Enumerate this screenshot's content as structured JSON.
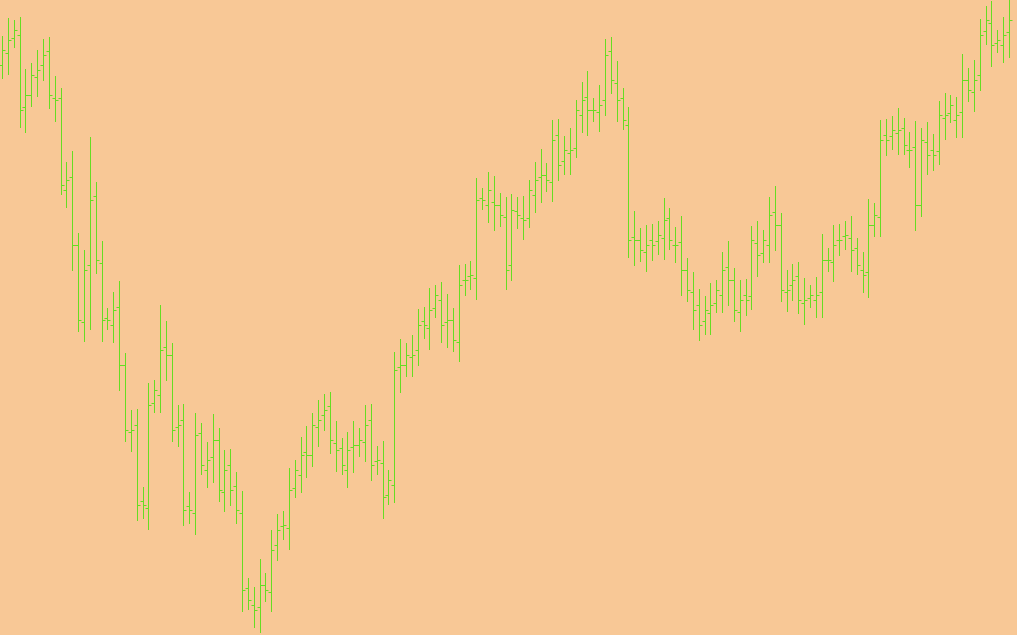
{
  "chart_data": {
    "type": "ohlc",
    "color": "#66dd22",
    "background": "#f8c896",
    "ylim": [
      0,
      635
    ],
    "open": [
      570,
      582,
      597,
      600,
      528,
      540,
      558,
      570,
      584,
      537,
      537,
      445,
      458,
      390,
      313,
      370,
      439,
      372,
      317,
      310,
      328,
      270,
      203,
      210,
      134,
      127,
      232,
      240,
      288,
      280,
      208,
      215,
      129,
      122,
      202,
      165,
      178,
      195,
      143,
      170,
      149,
      122,
      47,
      30,
      28,
      50,
      43,
      90,
      109,
      107,
      147,
      160,
      183,
      180,
      208,
      220,
      229,
      192,
      187,
      165,
      188,
      190,
      193,
      215,
      174,
      172,
      140,
      150,
      268,
      270,
      278,
      285,
      314,
      307,
      327,
      335,
      313,
      315,
      293,
      355,
      359,
      357,
      437,
      430,
      433,
      430,
      418,
      370,
      424,
      417,
      417,
      440,
      458,
      460,
      453,
      500,
      474,
      482,
      487,
      520,
      538,
      525,
      523,
      535,
      584,
      552,
      537,
      510,
      398,
      395,
      383,
      395,
      394,
      397,
      417,
      390,
      393,
      365,
      343,
      330,
      314,
      322,
      332,
      340,
      368,
      355,
      323,
      340,
      339,
      392,
      382,
      390,
      423,
      410,
      343,
      350,
      359,
      332,
      337,
      335,
      343,
      375,
      373,
      395,
      399,
      397,
      387,
      365,
      363,
      410,
      418,
      500,
      499,
      502,
      507,
      485,
      488,
      430,
      493,
      485,
      484,
      517,
      522,
      515,
      523,
      555,
      543,
      560,
      604,
      612,
      592,
      590,
      603
    ],
    "high": [
      599,
      617,
      615,
      618,
      566,
      572,
      585,
      596,
      598,
      559,
      547,
      473,
      484,
      402,
      385,
      498,
      453,
      394,
      327,
      343,
      354,
      282,
      225,
      226,
      148,
      252,
      255,
      330,
      314,
      292,
      230,
      231,
      143,
      222,
      212,
      193,
      221,
      207,
      185,
      186,
      163,
      144,
      57,
      48,
      76,
      62,
      105,
      121,
      124,
      167,
      175,
      198,
      209,
      222,
      235,
      241,
      243,
      214,
      197,
      203,
      214,
      207,
      230,
      231,
      189,
      194,
      165,
      283,
      296,
      292,
      300,
      326,
      328,
      347,
      350,
      353,
      341,
      327,
      370,
      371,
      374,
      457,
      447,
      463,
      459,
      442,
      438,
      441,
      438,
      439,
      455,
      473,
      486,
      472,
      515,
      516,
      499,
      507,
      535,
      553,
      564,
      537,
      550,
      596,
      598,
      574,
      547,
      528,
      424,
      407,
      410,
      411,
      414,
      437,
      427,
      408,
      419,
      377,
      363,
      346,
      339,
      352,
      355,
      383,
      394,
      367,
      355,
      356,
      409,
      414,
      405,
      438,
      449,
      422,
      365,
      371,
      373,
      357,
      350,
      358,
      401,
      387,
      410,
      411,
      414,
      419,
      397,
      383,
      436,
      432,
      515,
      516,
      519,
      527,
      517,
      503,
      514,
      507,
      513,
      501,
      534,
      542,
      540,
      538,
      581,
      567,
      575,
      616,
      629,
      634,
      605,
      618,
      635
    ],
    "low": [
      556,
      560,
      587,
      507,
      502,
      528,
      538,
      554,
      526,
      513,
      440,
      427,
      364,
      303,
      293,
      305,
      361,
      293,
      305,
      292,
      244,
      193,
      183,
      114,
      116,
      105,
      222,
      222,
      254,
      193,
      188,
      109,
      111,
      100,
      160,
      147,
      152,
      133,
      123,
      129,
      111,
      23,
      25,
      7,
      2,
      33,
      23,
      74,
      95,
      85,
      137,
      142,
      157,
      168,
      188,
      204,
      181,
      163,
      160,
      147,
      162,
      178,
      173,
      154,
      160,
      116,
      130,
      132,
      242,
      258,
      258,
      269,
      296,
      285,
      317,
      292,
      287,
      283,
      273,
      339,
      345,
      335,
      425,
      412,
      404,
      408,
      345,
      354,
      406,
      395,
      407,
      422,
      432,
      443,
      433,
      454,
      460,
      460,
      477,
      502,
      499,
      513,
      503,
      519,
      541,
      513,
      505,
      377,
      369,
      373,
      363,
      374,
      380,
      375,
      385,
      372,
      339,
      333,
      305,
      294,
      300,
      300,
      322,
      322,
      329,
      313,
      303,
      319,
      325,
      358,
      372,
      372,
      384,
      333,
      323,
      334,
      321,
      310,
      327,
      317,
      317,
      363,
      353,
      379,
      385,
      363,
      360,
      342,
      337,
      398,
      398,
      479,
      485,
      480,
      480,
      467,
      404,
      418,
      460,
      464,
      470,
      495,
      512,
      497,
      497,
      533,
      523,
      544,
      590,
      568,
      582,
      572,
      577
    ],
    "close": [
      585,
      595,
      605,
      525,
      540,
      560,
      565,
      580,
      540,
      535,
      450,
      455,
      390,
      315,
      365,
      435,
      375,
      315,
      315,
      325,
      270,
      205,
      205,
      130,
      130,
      230,
      245,
      285,
      280,
      205,
      210,
      125,
      125,
      200,
      170,
      175,
      195,
      145,
      165,
      145,
      125,
      45,
      35,
      25,
      50,
      45,
      85,
      105,
      110,
      145,
      165,
      180,
      180,
      210,
      215,
      225,
      195,
      185,
      170,
      185,
      190,
      195,
      210,
      170,
      175,
      138,
      155,
      265,
      270,
      280,
      280,
      310,
      310,
      325,
      340,
      310,
      315,
      295,
      350,
      355,
      360,
      435,
      435,
      445,
      430,
      420,
      365,
      425,
      420,
      415,
      445,
      455,
      460,
      455,
      495,
      470,
      485,
      485,
      525,
      535,
      525,
      525,
      530,
      580,
      555,
      535,
      515,
      395,
      395,
      385,
      390,
      390,
      400,
      415,
      395,
      390,
      365,
      345,
      325,
      310,
      325,
      330,
      345,
      365,
      355,
      325,
      335,
      335,
      395,
      380,
      395,
      420,
      410,
      345,
      345,
      355,
      335,
      335,
      340,
      340,
      375,
      375,
      390,
      395,
      400,
      385,
      370,
      360,
      410,
      420,
      495,
      495,
      505,
      505,
      490,
      485,
      430,
      495,
      480,
      480,
      520,
      520,
      530,
      520,
      555,
      545,
      555,
      600,
      615,
      590,
      595,
      600,
      615
    ]
  }
}
